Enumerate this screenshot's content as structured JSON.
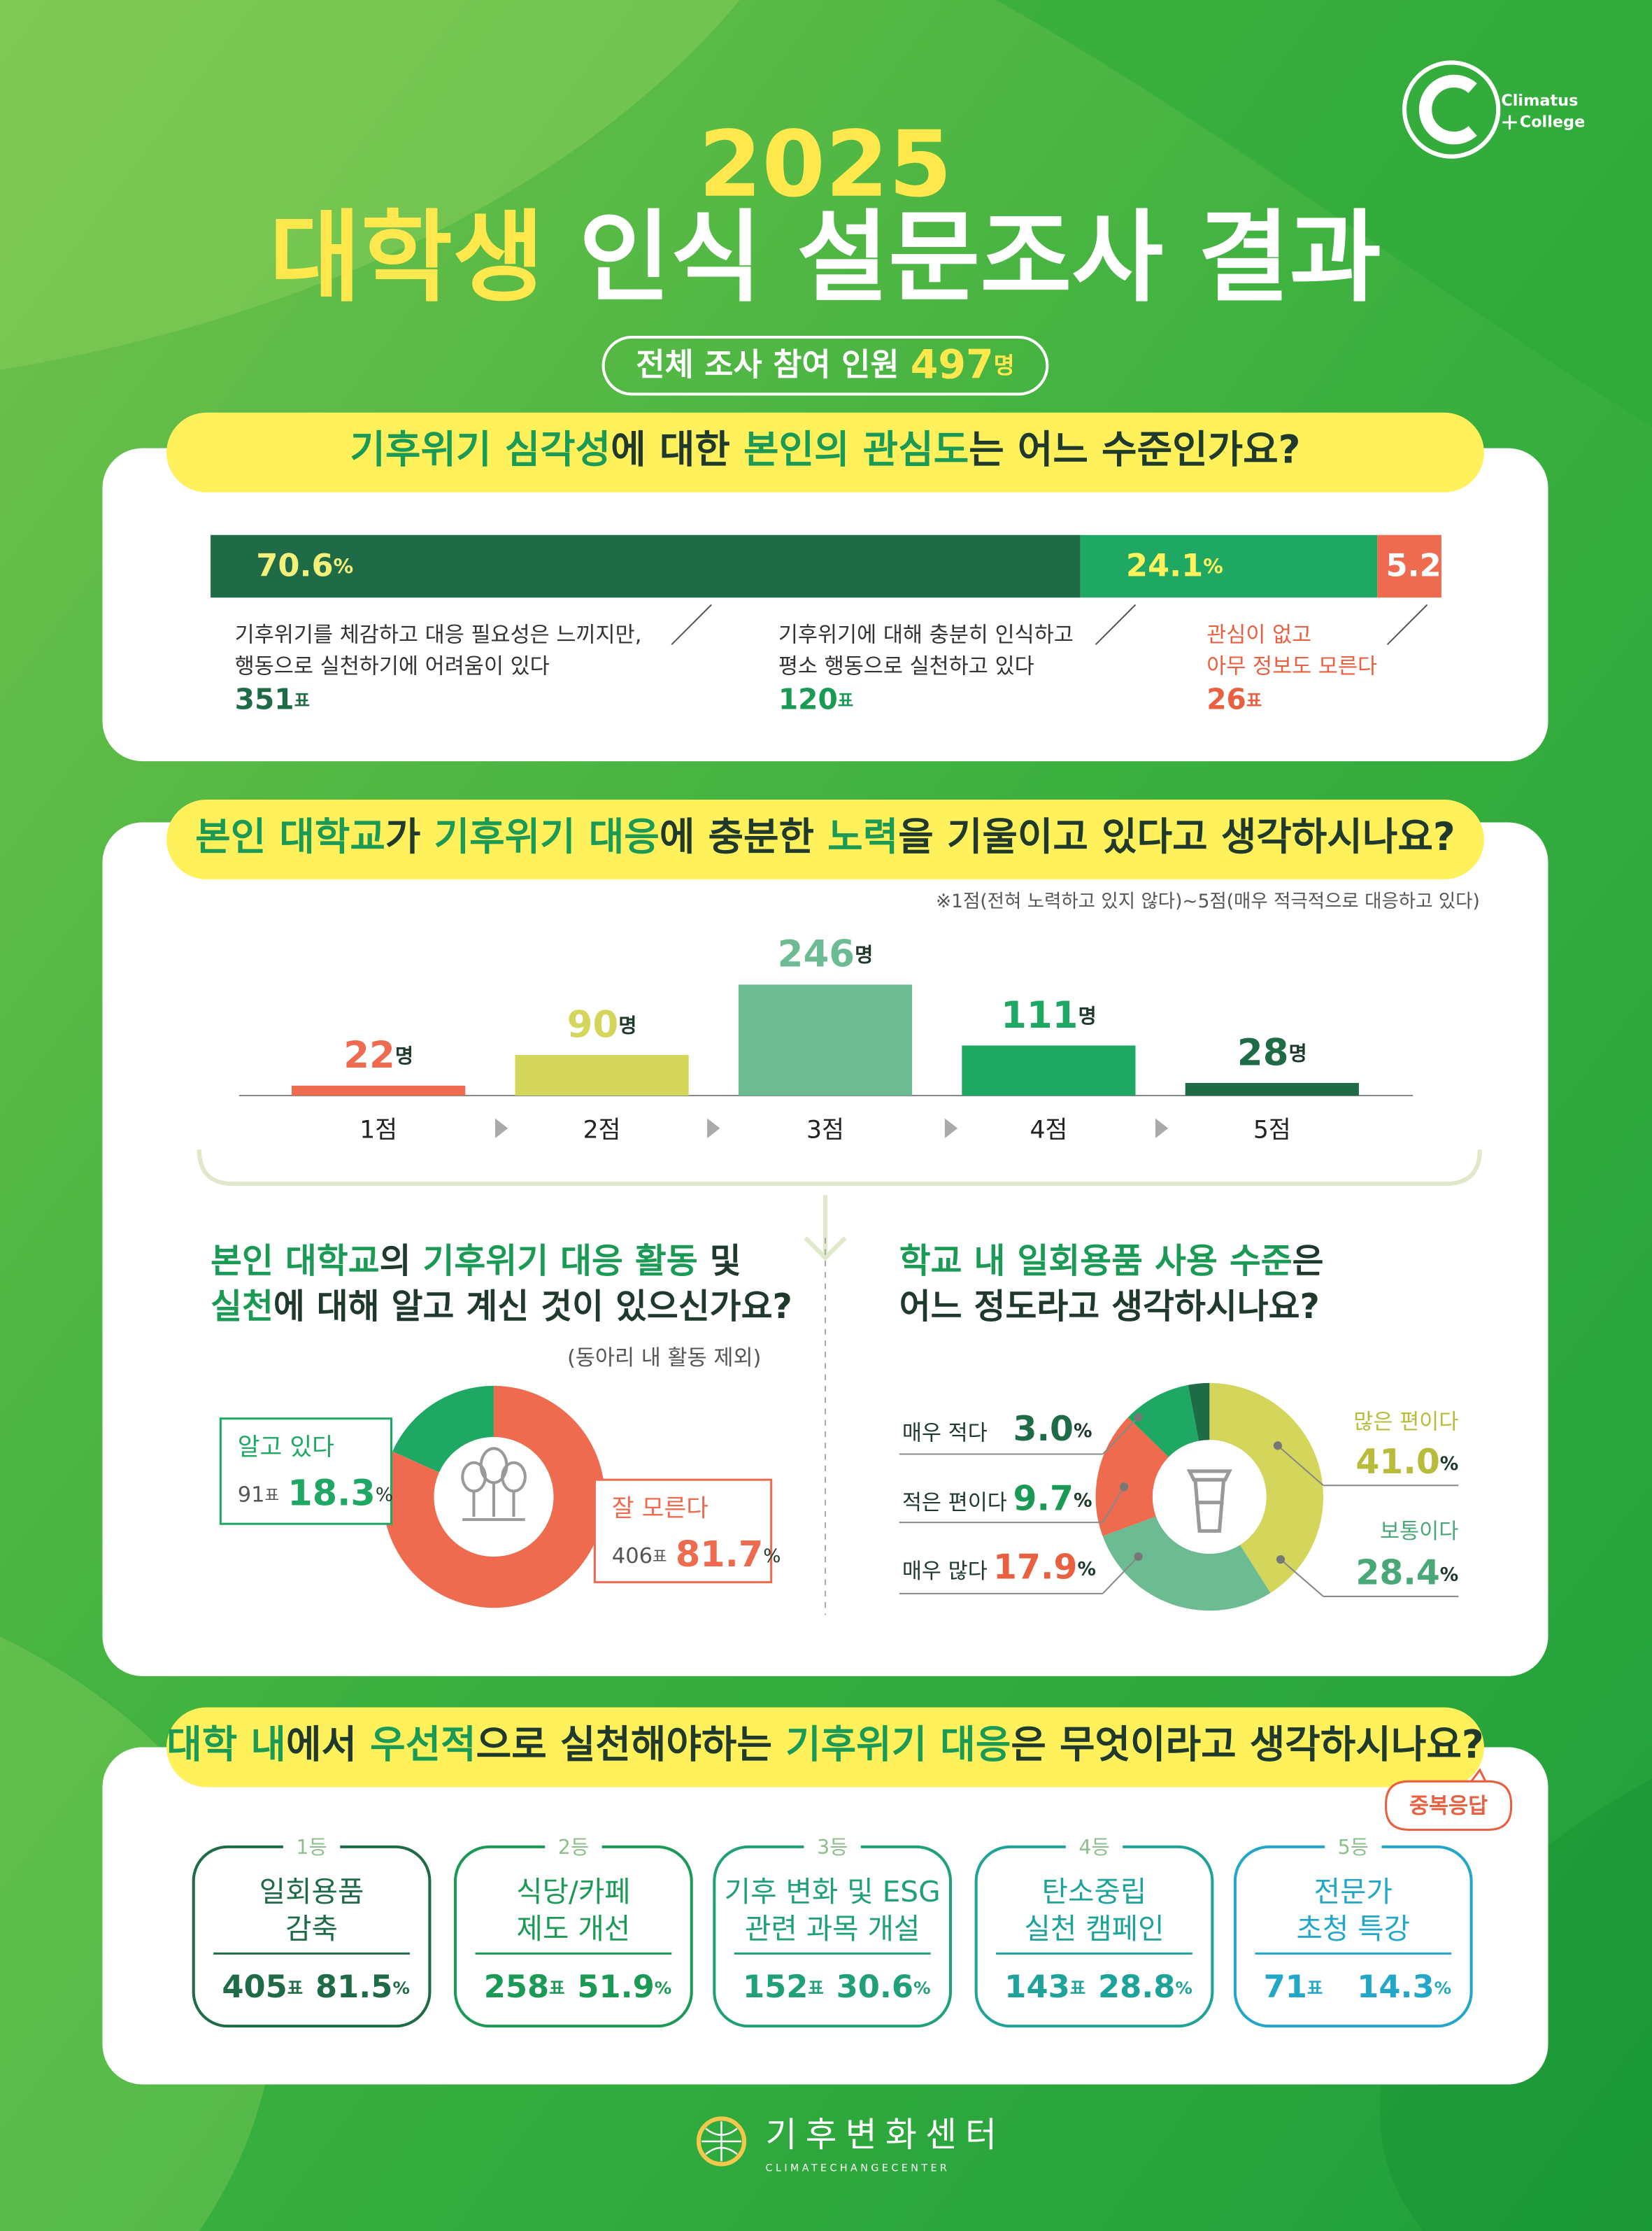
{
  "header": {
    "year": "2025",
    "title": [
      {
        "text": "대학생",
        "highlight": true
      },
      {
        "text": " 인식 설문조사 결과",
        "highlight": false
      }
    ],
    "participants_label": "전체 조사 참여 인원",
    "participants": 497
  },
  "logo": {
    "name": "Climatus",
    "sub": "College"
  },
  "units": {
    "people": "명",
    "votes": "표",
    "percent": "%"
  },
  "q1": {
    "question": [
      {
        "text": "기후위기 심각성",
        "highlight": true
      },
      {
        "text": "에 대한 ",
        "highlight": false
      },
      {
        "text": "본인의 관심도",
        "highlight": true
      },
      {
        "text": "는 어느 수준인가요?",
        "highlight": false
      }
    ],
    "answers": [
      {
        "value": 70.6,
        "lines": [
          "기후위기를 체감하고 대응 필요성은 느끼지만,",
          "행동으로 실천하기에 어려움이 있다"
        ],
        "votes": 351,
        "color": "#1f6b47",
        "label_color": "#f2ef7a",
        "text_color": "#333333",
        "votes_color": "#1f6b47"
      },
      {
        "value": 24.1,
        "lines": [
          "기후위기에 대해 충분히 인식하고",
          "평소 행동으로 실천하고 있다"
        ],
        "votes": 120,
        "color": "#1fa864",
        "label_color": "#fff25c",
        "text_color": "#333333",
        "votes_color": "#1a9a55"
      },
      {
        "value": 5.2,
        "lines": [
          "관심이 없고",
          "아무 정보도 모른다"
        ],
        "votes": 26,
        "color": "#ee6b4f",
        "label_color": "#ffffff",
        "text_color": "#e8603f",
        "votes_color": "#e8603f"
      }
    ]
  },
  "q2": {
    "question": [
      {
        "text": "본인 대학교",
        "highlight": true
      },
      {
        "text": "가 ",
        "highlight": false
      },
      {
        "text": "기후위기 대응",
        "highlight": true
      },
      {
        "text": "에 충분한 ",
        "highlight": false
      },
      {
        "text": "노력",
        "highlight": true
      },
      {
        "text": "을 기울이고 있다고 생각하시나요?",
        "highlight": false
      }
    ],
    "note": "※1점(전혀 노력하고 있지 않다)~5점(매우 적극적으로 대응하고 있다)",
    "categories": [
      "1점",
      "2점",
      "3점",
      "4점",
      "5점"
    ],
    "values": [
      22,
      90,
      246,
      111,
      28
    ],
    "colors": [
      "#ee6b4f",
      "#d3d65a",
      "#6cbb92",
      "#1fa864",
      "#1f6b47"
    ]
  },
  "q3": {
    "question": [
      [
        {
          "text": "본인 대학교",
          "highlight": true
        },
        {
          "text": "의 ",
          "highlight": false
        },
        {
          "text": "기후위기 대응 활동",
          "highlight": true
        },
        {
          "text": " 및",
          "highlight": false
        }
      ],
      [
        {
          "text": "실천",
          "highlight": true
        },
        {
          "text": "에 대해 알고 계신 것이 있으신가요?",
          "highlight": false
        }
      ]
    ],
    "note": "(동아리 내 활동 제외)",
    "answers": [
      {
        "name": "알고 있다",
        "votes": 91,
        "value": 18.3,
        "color": "#1fa864"
      },
      {
        "name": "잘 모른다",
        "votes": 406,
        "value": 81.7,
        "color": "#ee6b4f"
      }
    ]
  },
  "q4": {
    "question": [
      [
        {
          "text": "학교 내 일회용품 사용 수준",
          "highlight": true
        },
        {
          "text": "은",
          "highlight": false
        }
      ],
      [
        {
          "text": "어느 정도라고 생각하시나요?",
          "highlight": false
        }
      ]
    ],
    "answers": [
      {
        "name": "많은 편이다",
        "value": 41,
        "value_label": "41.0",
        "color": "#d3d65a",
        "label_color": "#b9bc3a"
      },
      {
        "name": "보통이다",
        "value": 28.4,
        "color": "#6cbb92",
        "label_color": "#4aa777"
      },
      {
        "name": "매우 많다",
        "value": 17.9,
        "color": "#ee6b4f",
        "label_color": "#e8603f"
      },
      {
        "name": "적은 편이다",
        "value": 9.7,
        "color": "#1fa864",
        "label_color": "#1a9a55"
      },
      {
        "name": "매우 적다",
        "value": 3,
        "value_label": "3.0",
        "color": "#1f6b47",
        "label_color": "#1f6b47"
      }
    ]
  },
  "q5": {
    "question": [
      {
        "text": "대학 내",
        "highlight": true
      },
      {
        "text": "에서 ",
        "highlight": false
      },
      {
        "text": "우선적",
        "highlight": true
      },
      {
        "text": "으로 실천해야하는 ",
        "highlight": false
      },
      {
        "text": "기후위기 대응",
        "highlight": true
      },
      {
        "text": "은 무엇이라고 생각하시나요?",
        "highlight": false
      }
    ],
    "badge": "중복응답",
    "ranks": [
      {
        "rank": "1등",
        "lines": [
          "일회용품",
          "감축"
        ],
        "votes": 405,
        "value": 81.5,
        "color": "#1f6b47"
      },
      {
        "rank": "2등",
        "lines": [
          "식당/카페",
          "제도 개선"
        ],
        "votes": 258,
        "value": 51.9,
        "color": "#1a9a55"
      },
      {
        "rank": "3등",
        "lines": [
          "기후 변화 및 ESG",
          "관련 과목 개설"
        ],
        "votes": 152,
        "value": 30.6,
        "color": "#20a079"
      },
      {
        "rank": "4등",
        "lines": [
          "탄소중립",
          "실천 캠페인"
        ],
        "votes": 143,
        "value": 28.8,
        "color": "#1ea39a"
      },
      {
        "rank": "5등",
        "lines": [
          "전문가",
          "초청 특강"
        ],
        "votes": 71,
        "value": 14.3,
        "color": "#23a7c9"
      }
    ]
  },
  "footer": {
    "name": "기후변화센터",
    "name_en": "CLIMATECHANGECENTER"
  }
}
